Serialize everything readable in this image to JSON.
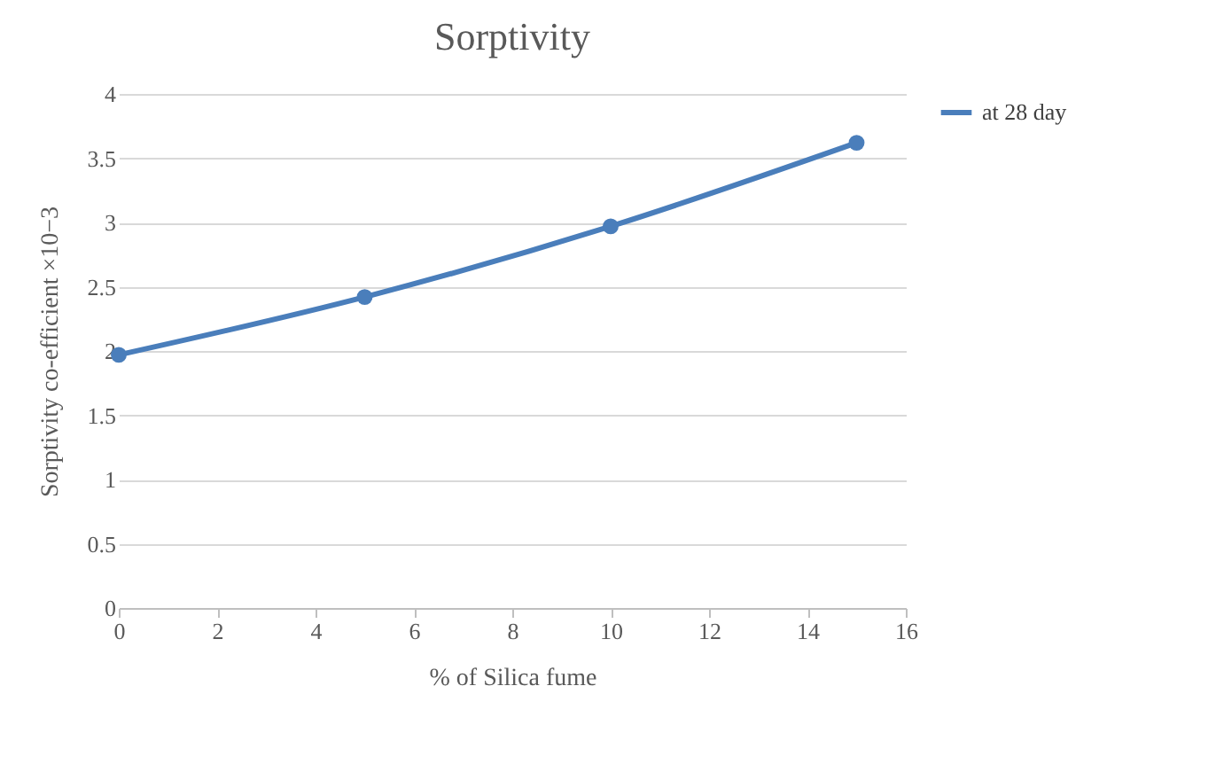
{
  "chart_data": {
    "type": "line",
    "title": "Sorptivity",
    "xlabel": "% of Silica fume",
    "ylabel": "Sorptivity co-efficient ×10−3",
    "x": [
      0,
      5,
      10,
      15
    ],
    "series": [
      {
        "name": "at 28 day",
        "color": "#4a7ebb",
        "values": [
          1.97,
          2.42,
          2.97,
          3.62
        ]
      }
    ],
    "xlim": [
      0,
      16
    ],
    "xticks": [
      0,
      2,
      4,
      6,
      8,
      10,
      12,
      14,
      16
    ],
    "ylim": [
      0,
      4
    ],
    "yticks": [
      0,
      0.5,
      1,
      1.5,
      2,
      2.5,
      3,
      3.5,
      4
    ],
    "grid": "y",
    "legend": "right",
    "marker": "circle",
    "line_style": "solid"
  }
}
